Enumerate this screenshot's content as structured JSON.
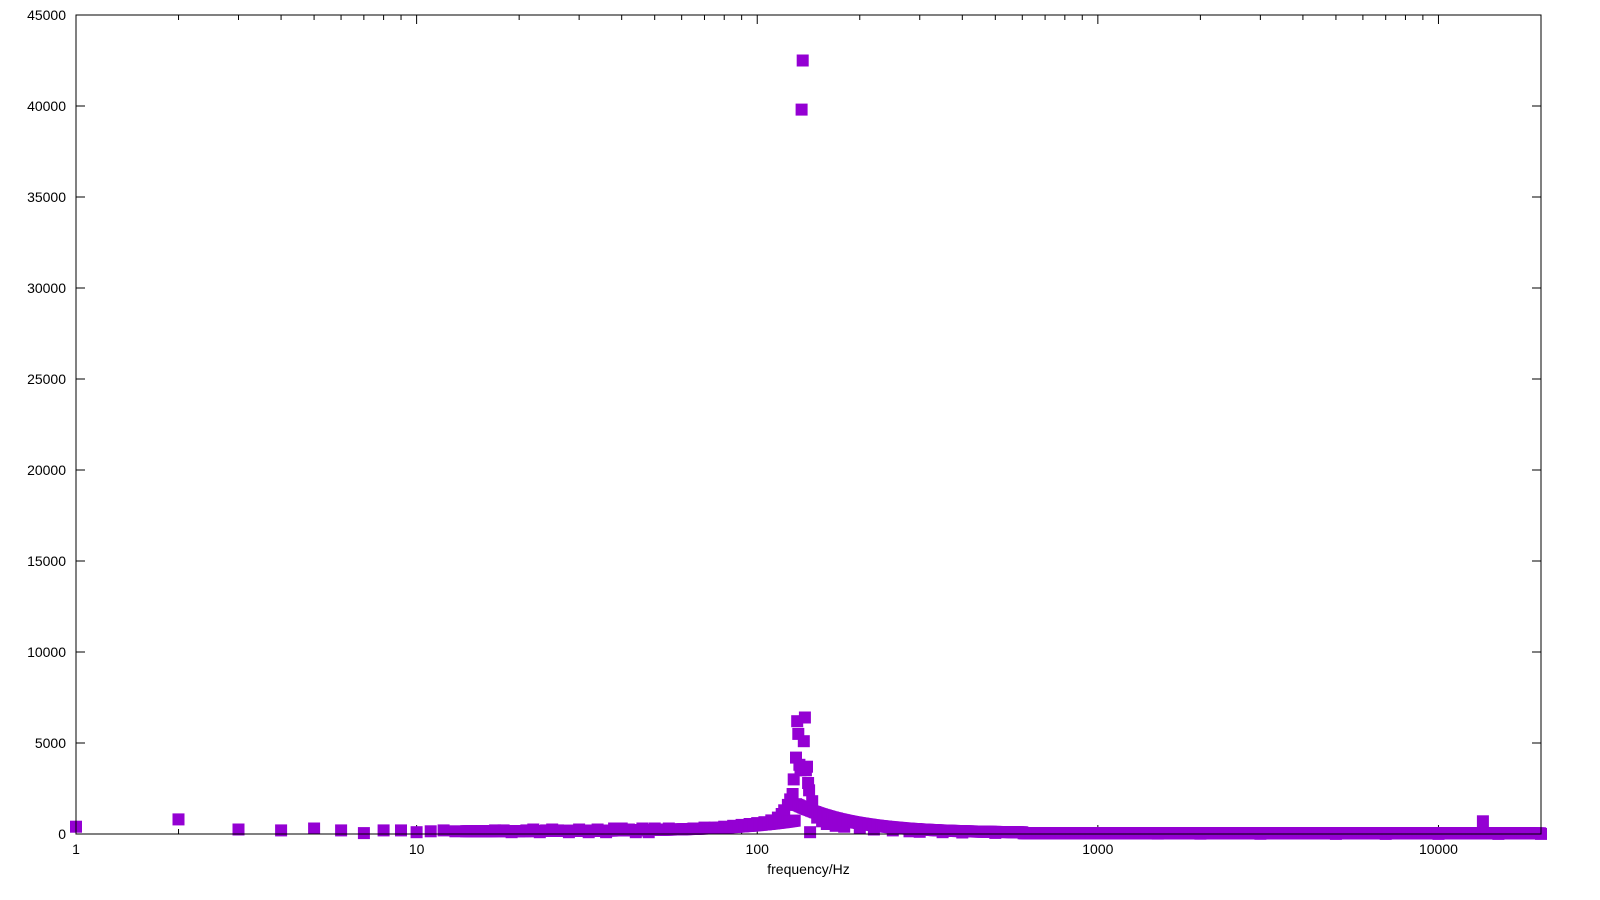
{
  "chart_data": {
    "type": "scatter",
    "title": "",
    "xlabel": "frequency/Hz",
    "ylabel": "",
    "xscale": "log",
    "xlim": [
      1,
      20000
    ],
    "ylim": [
      0,
      45000
    ],
    "grid": false,
    "legend": "none",
    "marker": "square",
    "color": "#9400D3",
    "x_ticks": [
      {
        "value": 1,
        "label": "1"
      },
      {
        "value": 10,
        "label": "10"
      },
      {
        "value": 100,
        "label": "100"
      },
      {
        "value": 1000,
        "label": "1000"
      },
      {
        "value": 10000,
        "label": "10000"
      }
    ],
    "y_ticks": [
      {
        "value": 0,
        "label": "0"
      },
      {
        "value": 5000,
        "label": "5000"
      },
      {
        "value": 10000,
        "label": "10000"
      },
      {
        "value": 15000,
        "label": "15000"
      },
      {
        "value": 20000,
        "label": "20000"
      },
      {
        "value": 25000,
        "label": "25000"
      },
      {
        "value": 30000,
        "label": "30000"
      },
      {
        "value": 35000,
        "label": "35000"
      },
      {
        "value": 40000,
        "label": "40000"
      },
      {
        "value": 45000,
        "label": "45000"
      }
    ],
    "points": [
      [
        1,
        400
      ],
      [
        2,
        800
      ],
      [
        3,
        250
      ],
      [
        4,
        200
      ],
      [
        5,
        300
      ],
      [
        6,
        200
      ],
      [
        7,
        50
      ],
      [
        8,
        200
      ],
      [
        9,
        200
      ],
      [
        10,
        100
      ],
      [
        11,
        150
      ],
      [
        12,
        200
      ],
      [
        13,
        150
      ],
      [
        14,
        150
      ],
      [
        15,
        150
      ],
      [
        16,
        150
      ],
      [
        17,
        200
      ],
      [
        18,
        200
      ],
      [
        19,
        100
      ],
      [
        20,
        150
      ],
      [
        21,
        200
      ],
      [
        22,
        250
      ],
      [
        23,
        100
      ],
      [
        24,
        200
      ],
      [
        25,
        250
      ],
      [
        26,
        200
      ],
      [
        28,
        100
      ],
      [
        30,
        250
      ],
      [
        32,
        100
      ],
      [
        34,
        250
      ],
      [
        36,
        100
      ],
      [
        38,
        300
      ],
      [
        40,
        300
      ],
      [
        42,
        250
      ],
      [
        44,
        100
      ],
      [
        46,
        300
      ],
      [
        48,
        100
      ],
      [
        50,
        300
      ],
      [
        55,
        300
      ],
      [
        60,
        250
      ],
      [
        65,
        300
      ],
      [
        70,
        350
      ],
      [
        75,
        350
      ],
      [
        80,
        400
      ],
      [
        85,
        450
      ],
      [
        90,
        500
      ],
      [
        95,
        550
      ],
      [
        100,
        600
      ],
      [
        105,
        650
      ],
      [
        110,
        750
      ],
      [
        115,
        900
      ],
      [
        118,
        1100
      ],
      [
        120,
        1300
      ],
      [
        123,
        1600
      ],
      [
        125,
        1900
      ],
      [
        127,
        2200
      ],
      [
        128,
        3000
      ],
      [
        130,
        4200
      ],
      [
        131,
        6200
      ],
      [
        132,
        5500
      ],
      [
        133,
        3800
      ],
      [
        134,
        3500
      ],
      [
        135,
        39800
      ],
      [
        136,
        42500
      ],
      [
        137,
        5100
      ],
      [
        138,
        6400
      ],
      [
        139,
        3500
      ],
      [
        140,
        3700
      ],
      [
        141,
        2800
      ],
      [
        142,
        2400
      ],
      [
        143,
        100
      ],
      [
        145,
        1800
      ],
      [
        148,
        1200
      ],
      [
        150,
        900
      ],
      [
        155,
        700
      ],
      [
        160,
        550
      ],
      [
        170,
        450
      ],
      [
        180,
        400
      ],
      [
        200,
        300
      ],
      [
        220,
        250
      ],
      [
        250,
        200
      ],
      [
        280,
        150
      ],
      [
        300,
        120
      ],
      [
        350,
        100
      ],
      [
        400,
        80
      ],
      [
        500,
        60
      ],
      [
        700,
        40
      ],
      [
        1000,
        30
      ],
      [
        1500,
        20
      ],
      [
        2000,
        15
      ],
      [
        3000,
        10
      ],
      [
        5000,
        8
      ],
      [
        7000,
        5
      ],
      [
        10000,
        5
      ],
      [
        13500,
        700
      ],
      [
        15000,
        5
      ],
      [
        20000,
        5
      ]
    ]
  }
}
